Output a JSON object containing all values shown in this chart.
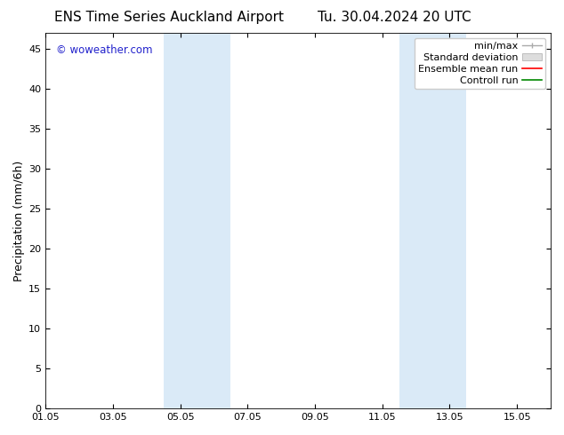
{
  "title_left": "ENS Time Series Auckland Airport",
  "title_right": "Tu. 30.04.2024 20 UTC",
  "ylabel": "Precipitation (mm/6h)",
  "watermark": "© woweather.com",
  "watermark_color": "#2222cc",
  "xlim_start": 0,
  "xlim_end": 15,
  "ylim_bottom": 0,
  "ylim_top": 47,
  "yticks": [
    0,
    5,
    10,
    15,
    20,
    25,
    30,
    35,
    40,
    45
  ],
  "xtick_labels": [
    "01.05",
    "03.05",
    "05.05",
    "07.05",
    "09.05",
    "11.05",
    "13.05",
    "15.05"
  ],
  "xtick_positions": [
    0,
    2,
    4,
    6,
    8,
    10,
    12,
    14
  ],
  "shaded_bands": [
    {
      "x_start": 3.5,
      "x_end": 5.5
    },
    {
      "x_start": 10.5,
      "x_end": 12.5
    }
  ],
  "shade_color": "#daeaf7",
  "background_color": "#ffffff",
  "legend_labels": [
    "min/max",
    "Standard deviation",
    "Ensemble mean run",
    "Controll run"
  ],
  "legend_colors_line": [
    "#aaaaaa",
    "#cccccc",
    "#ff0000",
    "#008800"
  ],
  "title_fontsize": 11,
  "axis_fontsize": 9,
  "tick_fontsize": 8,
  "legend_fontsize": 8
}
